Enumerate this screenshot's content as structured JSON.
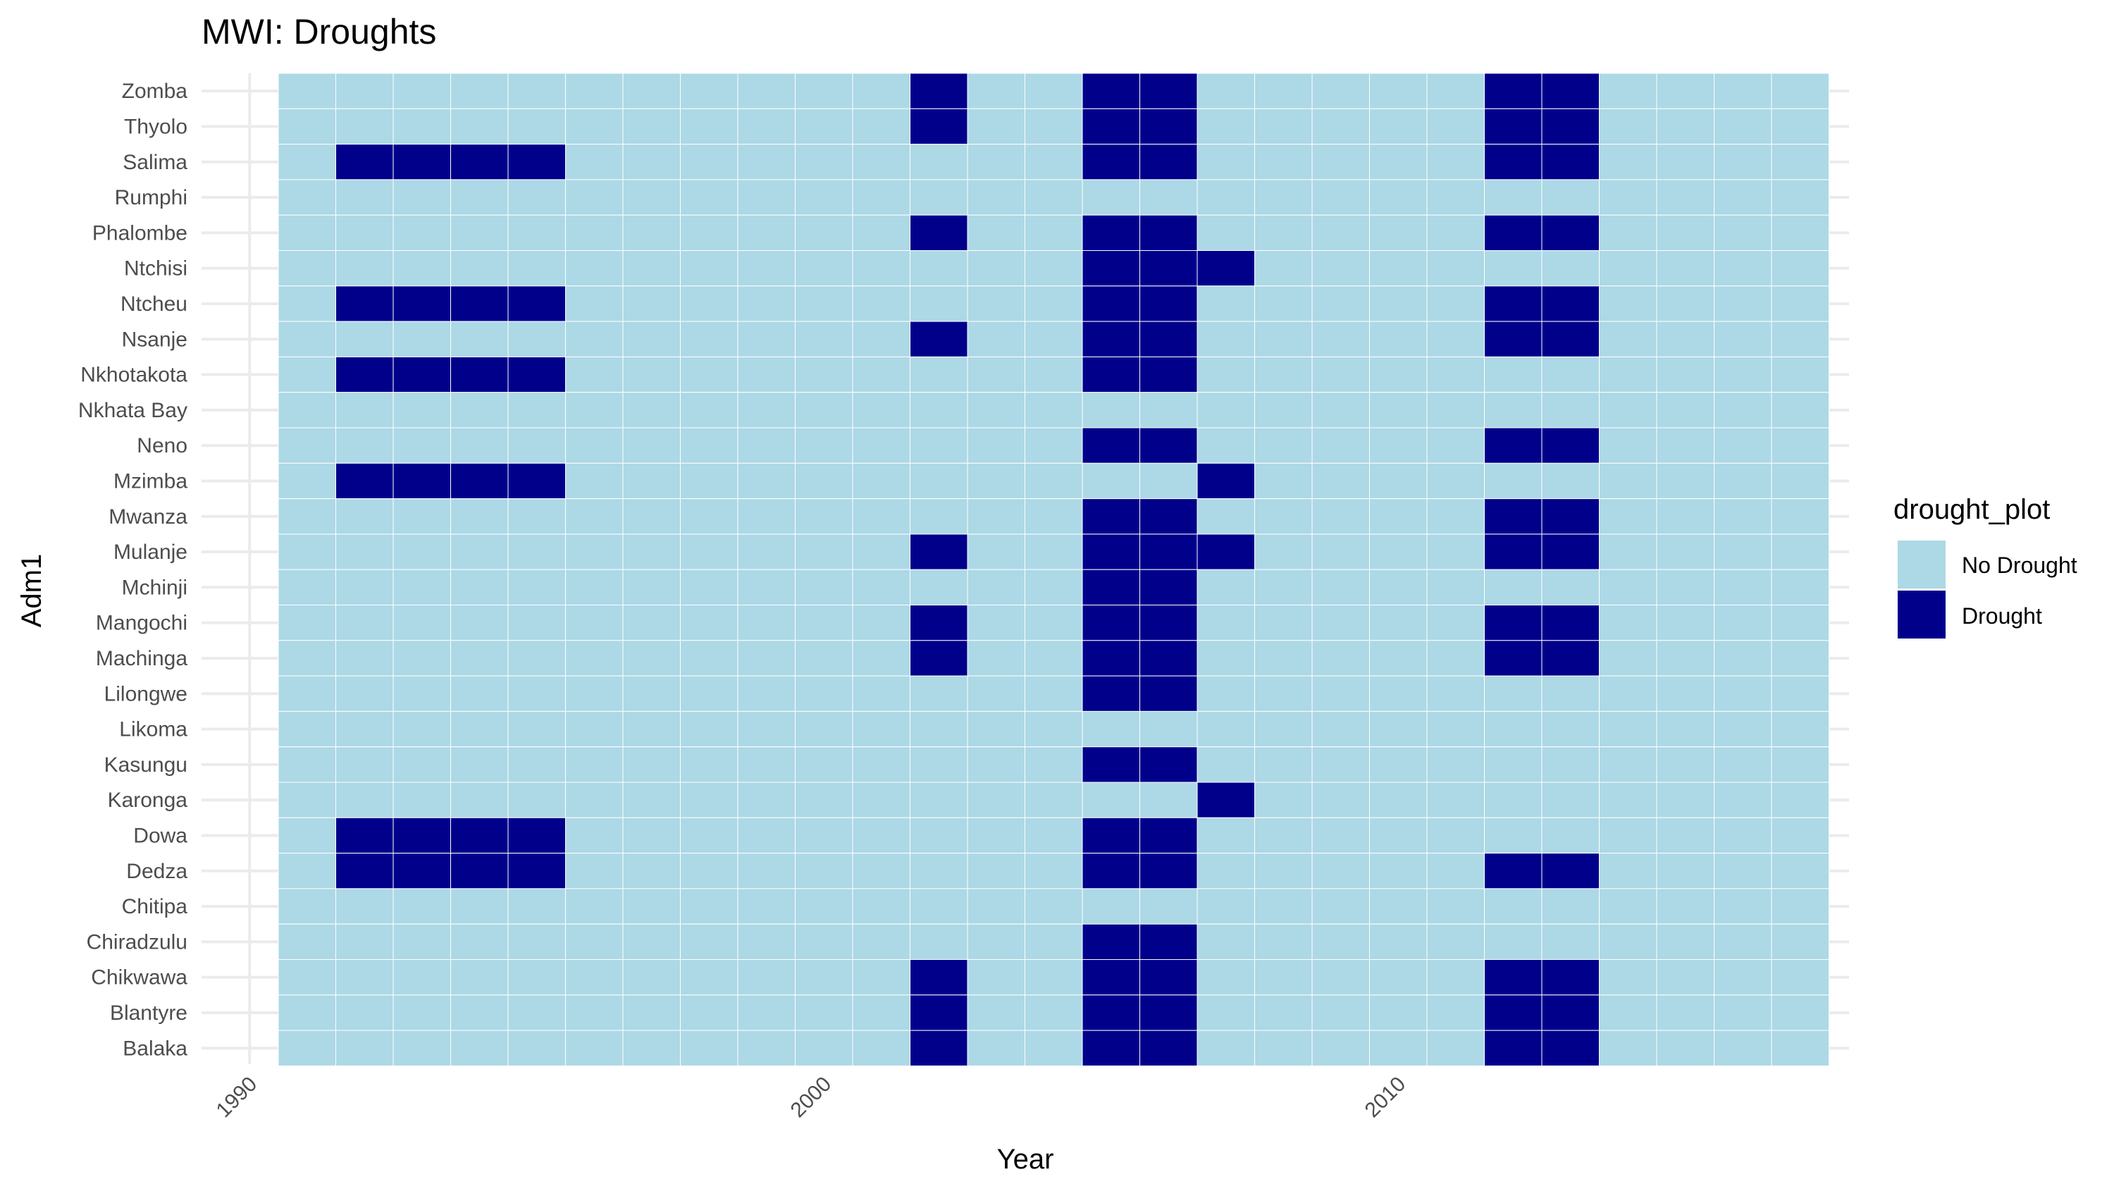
{
  "chart_data": {
    "type": "heatmap",
    "title": "MWI: Droughts",
    "xlabel": "Year",
    "ylabel": "Adm1",
    "x_ticks": [
      1990,
      2000,
      2010
    ],
    "xlim": [
      1989.5,
      2017.8
    ],
    "years": [
      1991,
      1992,
      1993,
      1994,
      1995,
      1996,
      1997,
      1998,
      1999,
      2000,
      2001,
      2002,
      2003,
      2004,
      2005,
      2006,
      2007,
      2008,
      2009,
      2010,
      2011,
      2012,
      2013,
      2014,
      2015,
      2016,
      2017
    ],
    "regions": [
      "Zomba",
      "Thyolo",
      "Salima",
      "Rumphi",
      "Phalombe",
      "Ntchisi",
      "Ntcheu",
      "Nsanje",
      "Nkhotakota",
      "Nkhata Bay",
      "Neno",
      "Mzimba",
      "Mwanza",
      "Mulanje",
      "Mchinji",
      "Mangochi",
      "Machinga",
      "Lilongwe",
      "Likoma",
      "Kasungu",
      "Karonga",
      "Dowa",
      "Dedza",
      "Chitipa",
      "Chiradzulu",
      "Chikwawa",
      "Blantyre",
      "Balaka"
    ],
    "drought_years": {
      "Zomba": [
        2002,
        2005,
        2006,
        2012,
        2013
      ],
      "Thyolo": [
        2002,
        2005,
        2006,
        2012,
        2013
      ],
      "Salima": [
        1992,
        1993,
        1994,
        1995,
        2005,
        2006,
        2012,
        2013
      ],
      "Rumphi": [],
      "Phalombe": [
        2002,
        2005,
        2006,
        2012,
        2013
      ],
      "Ntchisi": [
        2005,
        2006,
        2007
      ],
      "Ntcheu": [
        1992,
        1993,
        1994,
        1995,
        2005,
        2006,
        2012,
        2013
      ],
      "Nsanje": [
        2002,
        2005,
        2006,
        2012,
        2013
      ],
      "Nkhotakota": [
        1992,
        1993,
        1994,
        1995,
        2005,
        2006
      ],
      "Nkhata Bay": [],
      "Neno": [
        2005,
        2006,
        2012,
        2013
      ],
      "Mzimba": [
        1992,
        1993,
        1994,
        1995,
        2007
      ],
      "Mwanza": [
        2005,
        2006,
        2012,
        2013
      ],
      "Mulanje": [
        2002,
        2005,
        2006,
        2007,
        2012,
        2013
      ],
      "Mchinji": [
        2005,
        2006
      ],
      "Mangochi": [
        2002,
        2005,
        2006,
        2012,
        2013
      ],
      "Machinga": [
        2002,
        2005,
        2006,
        2012,
        2013
      ],
      "Lilongwe": [
        2005,
        2006
      ],
      "Likoma": [],
      "Kasungu": [
        2005,
        2006
      ],
      "Karonga": [
        2007
      ],
      "Dowa": [
        1992,
        1993,
        1994,
        1995,
        2005,
        2006
      ],
      "Dedza": [
        1992,
        1993,
        1994,
        1995,
        2005,
        2006,
        2012,
        2013
      ],
      "Chitipa": [],
      "Chiradzulu": [
        2005,
        2006
      ],
      "Chikwawa": [
        2002,
        2005,
        2006,
        2012,
        2013
      ],
      "Blantyre": [
        2002,
        2005,
        2006,
        2012,
        2013
      ],
      "Balaka": [
        2002,
        2005,
        2006,
        2012,
        2013
      ]
    },
    "legend": {
      "title": "drought_plot",
      "placement": "right",
      "entries": [
        {
          "label": "No Drought",
          "color": "#add8e6"
        },
        {
          "label": "Drought",
          "color": "#00008b"
        }
      ]
    },
    "grid": true,
    "colors": {
      "no_drought": "#add8e6",
      "drought": "#00008b",
      "cell_border": "#ffffff"
    }
  }
}
